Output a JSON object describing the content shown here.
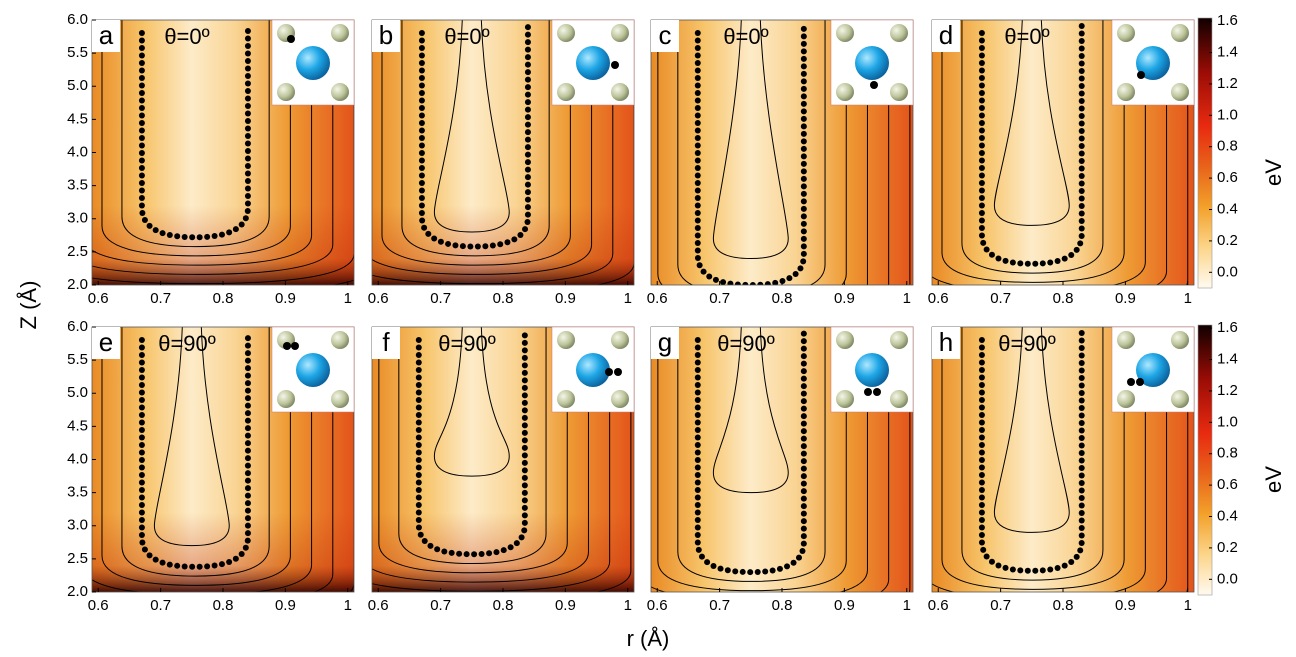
{
  "figure": {
    "xlabel": "r (Å)",
    "ylabel": "Z (Å)"
  },
  "chart_data": [
    {
      "type": "contour",
      "label": "a",
      "annotation": "θ=0º",
      "xlim": [
        0.59,
        1.01
      ],
      "ylim": [
        2.0,
        6.0
      ],
      "xticks": [
        0.6,
        0.7,
        0.8,
        0.9,
        1
      ],
      "yticks": [
        {
          "value": 2.0,
          "label": "2.0"
        },
        2.5,
        {
          "value": 3.0,
          "label": "3.0"
        },
        3.5,
        {
          "value": 4.0,
          "label": "4.0"
        },
        4.5,
        {
          "value": 5.0,
          "label": "5.0"
        },
        5.5,
        {
          "value": 6.0,
          "label": "6.0"
        }
      ]
    },
    {
      "type": "contour",
      "label": "b",
      "annotation": "θ=0º",
      "xlim": [
        0.59,
        1.01
      ],
      "ylim": [
        2.0,
        6.0
      ],
      "xticks": [
        0.6,
        0.7,
        0.8,
        0.9,
        1
      ]
    },
    {
      "type": "contour",
      "label": "c",
      "annotation": "θ=0º",
      "xlim": [
        0.59,
        1.01
      ],
      "ylim": [
        2.0,
        6.0
      ],
      "xticks": [
        0.6,
        0.7,
        0.8,
        0.9,
        1
      ]
    },
    {
      "type": "contour",
      "label": "d",
      "annotation": "θ=0º",
      "xlim": [
        0.59,
        1.01
      ],
      "ylim": [
        2.0,
        6.0
      ],
      "xticks": [
        0.6,
        0.7,
        0.8,
        0.9,
        1
      ]
    },
    {
      "type": "contour",
      "label": "e",
      "annotation": "θ=90º",
      "xlim": [
        0.59,
        1.01
      ],
      "ylim": [
        2.0,
        6.0
      ],
      "xticks": [
        0.6,
        0.7,
        0.8,
        0.9,
        1
      ],
      "yticks": [
        {
          "value": 2.0,
          "label": "2.0"
        },
        2.5,
        {
          "value": 3.0,
          "label": "3.0"
        },
        3.5,
        {
          "value": 4.0,
          "label": "4.0"
        },
        4.5,
        {
          "value": 5.0,
          "label": "5.0"
        },
        5.5,
        {
          "value": 6.0,
          "label": "6.0"
        }
      ]
    },
    {
      "type": "contour",
      "label": "f",
      "annotation": "θ=90º",
      "xlim": [
        0.59,
        1.01
      ],
      "ylim": [
        2.0,
        6.0
      ],
      "xticks": [
        0.6,
        0.7,
        0.8,
        0.9,
        1
      ]
    },
    {
      "type": "contour",
      "label": "g",
      "annotation": "θ=90º",
      "xlim": [
        0.59,
        1.01
      ],
      "ylim": [
        2.0,
        6.0
      ],
      "xticks": [
        0.6,
        0.7,
        0.8,
        0.9,
        1
      ]
    },
    {
      "type": "contour",
      "label": "h",
      "annotation": "θ=90º",
      "xlim": [
        0.59,
        1.01
      ],
      "ylim": [
        2.0,
        6.0
      ],
      "xticks": [
        0.6,
        0.7,
        0.8,
        0.9,
        1
      ]
    }
  ],
  "colorbars": [
    {
      "label": "eV",
      "lim": [
        -0.1,
        1.62
      ],
      "ticks": [
        1.6,
        1.4,
        1.2,
        {
          "value": 1.0,
          "label": "1.0"
        },
        0.8,
        0.6,
        0.4,
        0.2,
        {
          "value": 0,
          "label": "0.0"
        }
      ]
    },
    {
      "label": "eV",
      "lim": [
        -0.1,
        1.62
      ],
      "ticks": [
        1.6,
        1.4,
        1.2,
        {
          "value": 1.0,
          "label": "1.0"
        },
        0.8,
        0.6,
        0.4,
        0.2,
        {
          "value": 0,
          "label": "0.0"
        }
      ]
    }
  ]
}
